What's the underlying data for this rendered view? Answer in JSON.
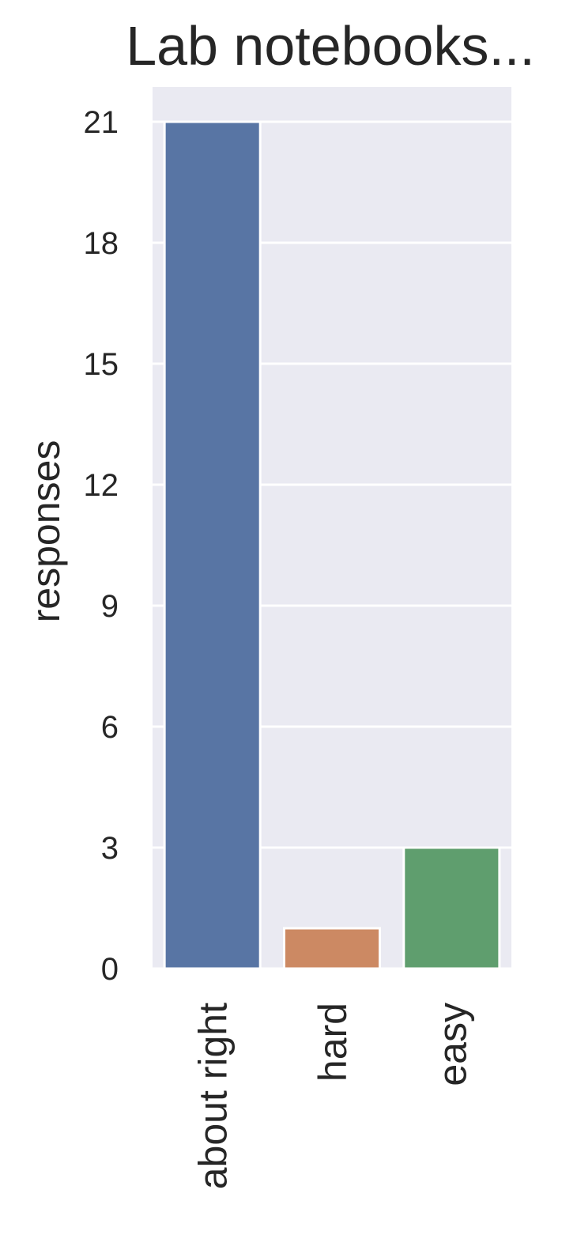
{
  "chart_data": {
    "type": "bar",
    "title": "Lab notebooks...",
    "xlabel": "",
    "ylabel": "responses",
    "categories": [
      "about right",
      "hard",
      "easy"
    ],
    "values": [
      21,
      1,
      3
    ],
    "colors": [
      "#5875a4",
      "#cc8963",
      "#5f9e6e"
    ],
    "yticks": [
      0,
      3,
      6,
      9,
      12,
      15,
      18,
      21
    ],
    "ylim": [
      0,
      22
    ],
    "grid": true,
    "background": "#eaeaf2"
  }
}
